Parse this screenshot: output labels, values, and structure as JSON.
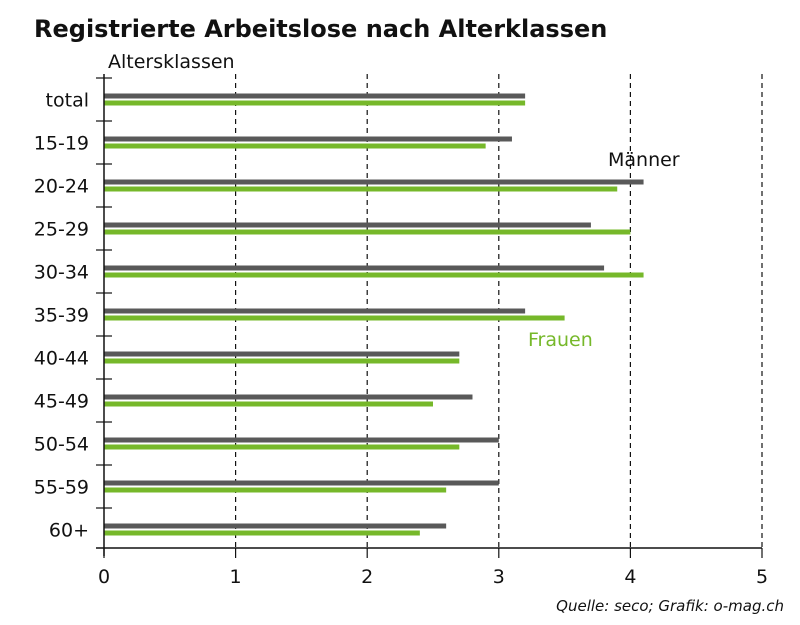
{
  "chart_data": {
    "type": "bar",
    "orientation": "horizontal",
    "title": "Registrierte Arbeitslose nach Alterklassen",
    "ylabel": "Altersklassen",
    "xlabel": "",
    "source": "Quelle: seco; Grafik: o-mag.ch",
    "categories": [
      "total",
      "15-19",
      "20-24",
      "25-29",
      "30-34",
      "35-39",
      "40-44",
      "45-49",
      "50-54",
      "55-59",
      "60+"
    ],
    "series": [
      {
        "name": "Männer",
        "color": "#595959",
        "values": [
          3.2,
          3.1,
          4.1,
          3.7,
          3.8,
          3.2,
          2.7,
          2.8,
          3.0,
          3.0,
          2.6
        ]
      },
      {
        "name": "Frauen",
        "color": "#76b82a",
        "values": [
          3.2,
          2.9,
          3.9,
          4.0,
          4.1,
          3.5,
          2.7,
          2.5,
          2.7,
          2.6,
          2.4
        ]
      }
    ],
    "xlim": [
      0,
      5
    ],
    "xticks": [
      "0",
      "1",
      "2",
      "3",
      "4",
      "5"
    ],
    "grid": "vertical-dashed"
  }
}
